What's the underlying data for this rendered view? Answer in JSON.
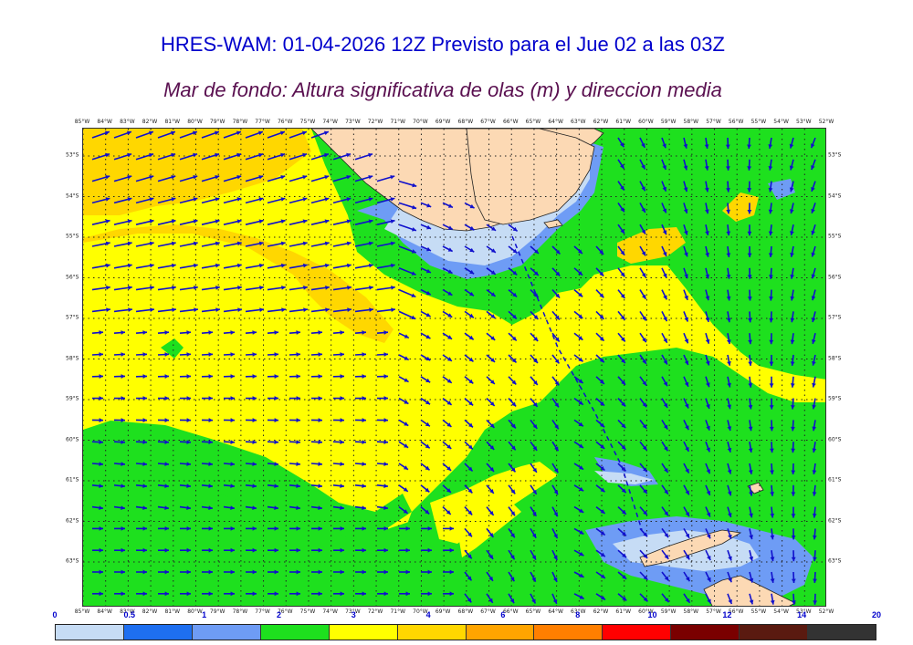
{
  "title": "HRES-WAM: 01-04-2026 12Z Previsto para el Jue 02 a las 03Z",
  "subtitle": "Mar de fondo: Altura significativa de olas (m) y direccion media",
  "longitudes": [
    "85°W",
    "84°W",
    "83°W",
    "82°W",
    "81°W",
    "80°W",
    "79°W",
    "78°W",
    "77°W",
    "76°W",
    "75°W",
    "74°W",
    "73°W",
    "72°W",
    "71°W",
    "70°W",
    "69°W",
    "68°W",
    "67°W",
    "66°W",
    "65°W",
    "64°W",
    "63°W",
    "62°W",
    "61°W",
    "60°W",
    "59°W",
    "58°W",
    "57°W",
    "56°W",
    "55°W",
    "54°W",
    "53°W",
    "52°W"
  ],
  "latitudes": [
    "53°S",
    "54°S",
    "55°S",
    "56°S",
    "57°S",
    "58°S",
    "59°S",
    "60°S",
    "61°S",
    "62°S",
    "63°S"
  ],
  "colorbar": {
    "labels": [
      "0",
      "0.5",
      "1",
      "2",
      "3",
      "4",
      "6",
      "8",
      "10",
      "12",
      "14",
      "20"
    ],
    "colors": [
      "#c6dcf5",
      "#1e6ff0",
      "#6e9cf5",
      "#1ee01e",
      "#ffff00",
      "#ffd700",
      "#ffa500",
      "#ff7f00",
      "#ff0000",
      "#7a0000",
      "#5a1a10",
      "#333333"
    ]
  },
  "colors": {
    "land": "#fcd9b4",
    "green": "#1ee01e",
    "yellow": "#ffff00",
    "gold": "#ffd700",
    "lightblue": "#c6dcf5",
    "medblue": "#6e9cf5",
    "arrow": "#1010cc"
  },
  "icons": {
    "arrow": "wave-direction-arrow",
    "dashed_line": "drake-passage-dashed-line"
  }
}
